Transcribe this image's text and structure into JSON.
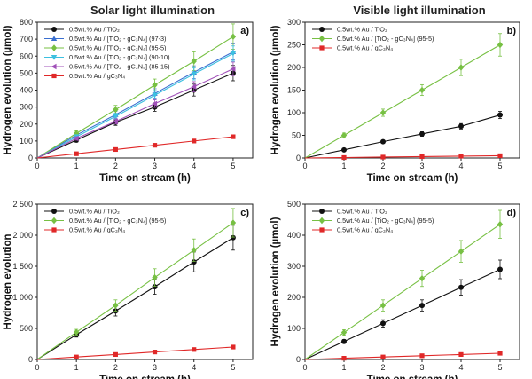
{
  "figure": {
    "titles": [
      "Solar light illumination",
      "Visible light illumination"
    ]
  },
  "chart_data": [
    {
      "type": "line",
      "panel": "a)",
      "xlabel": "Time on stream (h)",
      "ylabel": "Hydrogen evolution (µmol)",
      "xlim": [
        0,
        5.5
      ],
      "ylim": [
        0,
        800
      ],
      "xticks": [
        0,
        1,
        2,
        3,
        4,
        5
      ],
      "yticks": [
        0,
        100,
        200,
        300,
        400,
        500,
        600,
        700,
        800
      ],
      "ytick_labels": [
        "0",
        "100",
        "200",
        "300",
        "400",
        "500",
        "600",
        "700",
        "800"
      ],
      "legend_position": "top-left",
      "x": [
        0,
        1,
        2,
        3,
        4,
        5
      ],
      "series": [
        {
          "name": "0.5wt.% Au / TiO₂",
          "color": "#111111",
          "marker": "circle",
          "values": [
            0,
            105,
            210,
            300,
            400,
            500
          ],
          "errors": [
            0,
            12,
            18,
            25,
            35,
            45
          ]
        },
        {
          "name": "0.5wt.% Au / [TiO₂ - gC₃N₄] (97-3)",
          "color": "#3a6fd0",
          "marker": "triangle",
          "values": [
            0,
            135,
            255,
            380,
            505,
            625
          ],
          "errors": [
            0,
            12,
            20,
            28,
            38,
            48
          ]
        },
        {
          "name": "0.5wt.% Au / [TiO₂ - gC₃N₄] (95-5)",
          "color": "#77c043",
          "marker": "diamond",
          "values": [
            0,
            145,
            285,
            430,
            570,
            715
          ],
          "errors": [
            0,
            15,
            25,
            35,
            55,
            75
          ]
        },
        {
          "name": "0.5wt.% Au / [TiO₂ - gC₃N₄] (90-10)",
          "color": "#3cc0e0",
          "marker": "triangle-down",
          "values": [
            0,
            125,
            245,
            370,
            495,
            615
          ],
          "errors": [
            0,
            12,
            18,
            28,
            35,
            45
          ]
        },
        {
          "name": "0.5wt.% Au / [TiO₂ - gC₃N₄] (85-15)",
          "color": "#a050b8",
          "marker": "triangle-left",
          "values": [
            0,
            115,
            215,
            320,
            420,
            525
          ],
          "errors": [
            0,
            10,
            15,
            22,
            30,
            40
          ]
        },
        {
          "name": "0.5wt.% Au / gC₃N₄",
          "color": "#e02828",
          "marker": "square",
          "values": [
            0,
            25,
            50,
            75,
            100,
            125
          ],
          "errors": [
            0,
            3,
            4,
            5,
            6,
            7
          ]
        }
      ]
    },
    {
      "type": "line",
      "panel": "b)",
      "xlabel": "Time on stream (h)",
      "ylabel": "Hydrogen evolution (µmol)",
      "xlim": [
        0,
        5.5
      ],
      "ylim": [
        0,
        300
      ],
      "xticks": [
        0,
        1,
        2,
        3,
        4,
        5
      ],
      "yticks": [
        0,
        50,
        100,
        150,
        200,
        250,
        300
      ],
      "ytick_labels": [
        "0",
        "50",
        "100",
        "150",
        "200",
        "250",
        "300"
      ],
      "legend_position": "top-left",
      "x": [
        0,
        1,
        2,
        3,
        4,
        5
      ],
      "series": [
        {
          "name": "0.5wt.% Au / TiO₂",
          "color": "#111111",
          "marker": "circle",
          "values": [
            0,
            18,
            36,
            53,
            70,
            95
          ],
          "errors": [
            0,
            2,
            3,
            5,
            6,
            8
          ]
        },
        {
          "name": "0.5wt.% Au / [TiO₂ - gC₃N₄] (95-5)",
          "color": "#77c043",
          "marker": "diamond",
          "values": [
            0,
            50,
            100,
            150,
            200,
            250
          ],
          "errors": [
            0,
            5,
            8,
            12,
            18,
            25
          ]
        },
        {
          "name": "0.5wt.% Au / gC₃N₄",
          "color": "#e02828",
          "marker": "square",
          "values": [
            0,
            1,
            2,
            3,
            4,
            5
          ],
          "errors": [
            0,
            0.5,
            0.5,
            0.5,
            0.5,
            0.5
          ]
        }
      ]
    },
    {
      "type": "line",
      "panel": "c)",
      "xlabel": "Time on stream (h)",
      "ylabel": "Hydrogen evolution",
      "xlim": [
        0,
        5.5
      ],
      "ylim": [
        0,
        2500
      ],
      "xticks": [
        0,
        1,
        2,
        3,
        4,
        5
      ],
      "yticks": [
        0,
        500,
        1000,
        1500,
        2000,
        2500
      ],
      "ytick_labels": [
        "0",
        "500",
        "1 000",
        "1 500",
        "2 000",
        "2 500"
      ],
      "legend_position": "top-left",
      "x": [
        0,
        1,
        2,
        3,
        4,
        5
      ],
      "series": [
        {
          "name": "0.5wt.% Au / TiO₂",
          "color": "#111111",
          "marker": "circle",
          "values": [
            0,
            400,
            780,
            1170,
            1570,
            1960
          ],
          "errors": [
            0,
            40,
            80,
            120,
            160,
            200
          ]
        },
        {
          "name": "0.5wt.% Au / [TiO₂ - gC₃N₄] (95-5)",
          "color": "#77c043",
          "marker": "diamond",
          "values": [
            0,
            440,
            870,
            1320,
            1760,
            2200
          ],
          "errors": [
            0,
            45,
            90,
            140,
            180,
            230
          ]
        },
        {
          "name": "0.5wt.% Au / gC₃N₄",
          "color": "#e02828",
          "marker": "square",
          "values": [
            0,
            40,
            80,
            120,
            160,
            200
          ],
          "errors": [
            0,
            4,
            6,
            8,
            10,
            12
          ]
        }
      ]
    },
    {
      "type": "line",
      "panel": "d)",
      "xlabel": "Time on stream (h)",
      "ylabel": "Hydrogen evolution (µmol)",
      "xlim": [
        0,
        5.5
      ],
      "ylim": [
        0,
        500
      ],
      "xticks": [
        0,
        1,
        2,
        3,
        4,
        5
      ],
      "yticks": [
        0,
        100,
        200,
        300,
        400,
        500
      ],
      "ytick_labels": [
        "0",
        "100",
        "200",
        "300",
        "400",
        "500"
      ],
      "legend_position": "top-left",
      "x": [
        0,
        1,
        2,
        3,
        4,
        5
      ],
      "series": [
        {
          "name": "0.5wt.% Au / TiO₂",
          "color": "#111111",
          "marker": "circle",
          "values": [
            0,
            58,
            116,
            174,
            232,
            290
          ],
          "errors": [
            0,
            6,
            12,
            18,
            25,
            30
          ]
        },
        {
          "name": "0.5wt.% Au / [TiO₂ - gC₃N₄] (95-5)",
          "color": "#77c043",
          "marker": "diamond",
          "values": [
            0,
            87,
            174,
            261,
            348,
            435
          ],
          "errors": [
            0,
            9,
            18,
            26,
            35,
            45
          ]
        },
        {
          "name": "0.5wt.% Au / gC₃N₄",
          "color": "#e02828",
          "marker": "square",
          "values": [
            0,
            4,
            8,
            12,
            16,
            20
          ],
          "errors": [
            0,
            1,
            1,
            1,
            1,
            2
          ]
        }
      ]
    }
  ]
}
